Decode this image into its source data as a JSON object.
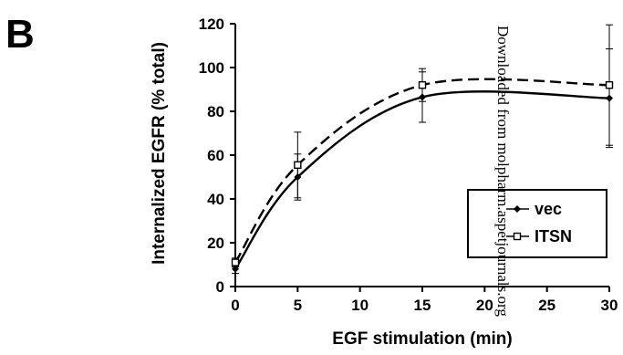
{
  "panel_label": "B",
  "watermark": "Downloaded from molpharm.aspetjournals.org",
  "chart_data": {
    "type": "line",
    "title": "",
    "xlabel": "EGF stimulation (min)",
    "ylabel": "Internalized EGFR (% total)",
    "xlim": [
      0,
      30
    ],
    "ylim": [
      0,
      120
    ],
    "xticks": [
      0,
      5,
      10,
      15,
      20,
      25,
      30
    ],
    "yticks": [
      0,
      20,
      40,
      60,
      80,
      100,
      120
    ],
    "grid": false,
    "legend": "bottom-right",
    "x": [
      0,
      5,
      15,
      30
    ],
    "series": [
      {
        "name": "vec",
        "values": [
          8,
          50,
          86.5,
          86
        ],
        "errors": [
          2,
          10.5,
          11.5,
          22.5
        ],
        "line": "solid",
        "marker": "filled-diamond",
        "color": "#000000"
      },
      {
        "name": "ITSN",
        "values": [
          11,
          55.5,
          92,
          92
        ],
        "errors": [
          2,
          15,
          7.5,
          27.5
        ],
        "line": "dashed",
        "marker": "open-square",
        "color": "#000000"
      }
    ]
  }
}
